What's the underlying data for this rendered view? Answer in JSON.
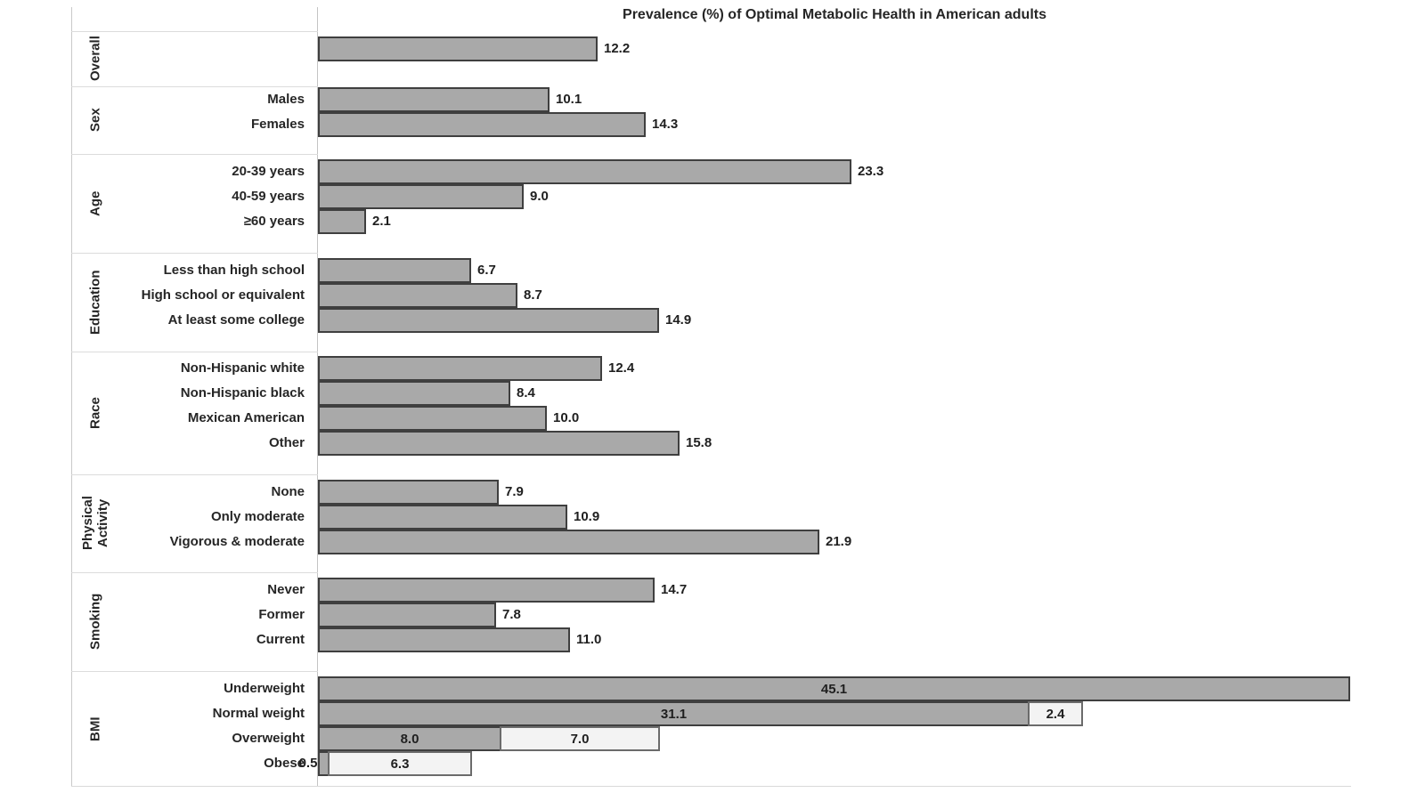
{
  "colors": {
    "bar_fill": "#a9a9a9",
    "bar_border": "#3f3f3f",
    "light_fill": "#f3f3f3",
    "light_border": "#6b6b6b",
    "text": "#262626",
    "grid": "#d9d9d9",
    "background": "#ffffff"
  },
  "chart_data": {
    "type": "bar",
    "orientation": "horizontal",
    "title": "Prevalence (%) of Optimal Metabolic Health in American adults",
    "value_unit": "%",
    "xlim": [
      0,
      45.1
    ],
    "grid": false,
    "legend": "none",
    "groups": [
      {
        "label": "Overall",
        "rows": [
          {
            "label": "",
            "segments": [
              {
                "text": "12.2",
                "value": 12.2,
                "shade": "dark",
                "label_pos": "right"
              }
            ]
          }
        ]
      },
      {
        "label": "Sex",
        "rows": [
          {
            "label": "Males",
            "segments": [
              {
                "text": "10.1",
                "value": 10.1,
                "shade": "dark",
                "label_pos": "right"
              }
            ]
          },
          {
            "label": "Females",
            "segments": [
              {
                "text": "14.3",
                "value": 14.3,
                "shade": "dark",
                "label_pos": "right"
              }
            ]
          }
        ]
      },
      {
        "label": "Age",
        "rows": [
          {
            "label": "20-39 years",
            "segments": [
              {
                "text": "23.3",
                "value": 23.3,
                "shade": "dark",
                "label_pos": "right"
              }
            ]
          },
          {
            "label": "40-59 years",
            "segments": [
              {
                "text": "9.0",
                "value": 9.0,
                "shade": "dark",
                "label_pos": "right"
              }
            ]
          },
          {
            "label": "≥60 years",
            "segments": [
              {
                "text": "2.1",
                "value": 2.1,
                "shade": "dark",
                "label_pos": "right"
              }
            ]
          }
        ]
      },
      {
        "label": "Education",
        "rows": [
          {
            "label": "Less than high school",
            "segments": [
              {
                "text": "6.7",
                "value": 6.7,
                "shade": "dark",
                "label_pos": "right"
              }
            ]
          },
          {
            "label": "High school or equivalent",
            "segments": [
              {
                "text": "8.7",
                "value": 8.7,
                "shade": "dark",
                "label_pos": "right"
              }
            ]
          },
          {
            "label": "At least some college",
            "segments": [
              {
                "text": "14.9",
                "value": 14.9,
                "shade": "dark",
                "label_pos": "right"
              }
            ]
          }
        ]
      },
      {
        "label": "Race",
        "rows": [
          {
            "label": "Non-Hispanic white",
            "segments": [
              {
                "text": "12.4",
                "value": 12.4,
                "shade": "dark",
                "label_pos": "right"
              }
            ]
          },
          {
            "label": "Non-Hispanic black",
            "segments": [
              {
                "text": "8.4",
                "value": 8.4,
                "shade": "dark",
                "label_pos": "right"
              }
            ]
          },
          {
            "label": "Mexican American",
            "segments": [
              {
                "text": "10.0",
                "value": 10.0,
                "shade": "dark",
                "label_pos": "right"
              }
            ]
          },
          {
            "label": "Other",
            "segments": [
              {
                "text": "15.8",
                "value": 15.8,
                "shade": "dark",
                "label_pos": "right"
              }
            ]
          }
        ]
      },
      {
        "label": "Physical Activity",
        "rows": [
          {
            "label": "None",
            "segments": [
              {
                "text": "7.9",
                "value": 7.9,
                "shade": "dark",
                "label_pos": "right"
              }
            ]
          },
          {
            "label": "Only moderate",
            "segments": [
              {
                "text": "10.9",
                "value": 10.9,
                "shade": "dark",
                "label_pos": "right"
              }
            ]
          },
          {
            "label": "Vigorous & moderate",
            "segments": [
              {
                "text": "21.9",
                "value": 21.9,
                "shade": "dark",
                "label_pos": "right"
              }
            ]
          }
        ]
      },
      {
        "label": "Smoking",
        "rows": [
          {
            "label": "Never",
            "segments": [
              {
                "text": "14.7",
                "value": 14.7,
                "shade": "dark",
                "label_pos": "right"
              }
            ]
          },
          {
            "label": "Former",
            "segments": [
              {
                "text": "7.8",
                "value": 7.8,
                "shade": "dark",
                "label_pos": "right"
              }
            ]
          },
          {
            "label": "Current",
            "segments": [
              {
                "text": "11.0",
                "value": 11.0,
                "shade": "dark",
                "label_pos": "right"
              }
            ]
          }
        ]
      },
      {
        "label": "BMI",
        "rows": [
          {
            "label": "Underweight",
            "segments": [
              {
                "text": "45.1",
                "value": 45.1,
                "shade": "dark",
                "label_pos": "center"
              }
            ]
          },
          {
            "label": "Normal weight",
            "segments": [
              {
                "text": "31.1",
                "value": 31.1,
                "shade": "dark",
                "label_pos": "center"
              },
              {
                "text": "2.4",
                "value": 2.4,
                "shade": "light",
                "label_pos": "center"
              }
            ]
          },
          {
            "label": "Overweight",
            "segments": [
              {
                "text": "8.0",
                "value": 8.0,
                "shade": "dark",
                "label_pos": "center"
              },
              {
                "text": "7.0",
                "value": 7.0,
                "shade": "light",
                "label_pos": "center"
              }
            ]
          },
          {
            "label": "Obese",
            "segments": [
              {
                "text": "0.5",
                "value": 0.5,
                "shade": "dark",
                "label_pos": "left"
              },
              {
                "text": "6.3",
                "value": 6.3,
                "shade": "light",
                "label_pos": "center"
              }
            ]
          }
        ]
      }
    ]
  }
}
